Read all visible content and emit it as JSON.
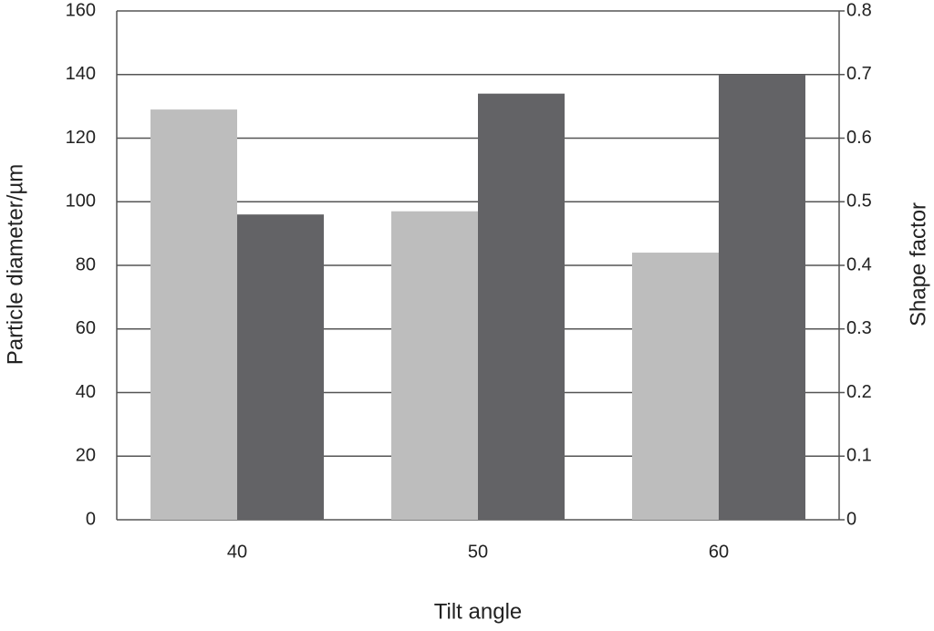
{
  "chart_data": {
    "type": "bar",
    "x_label": "Tilt angle",
    "y_label": "Particle diameter/µm",
    "y2_label": "Shape factor",
    "categories": [
      "40",
      "50",
      "60"
    ],
    "series": [
      {
        "color": "#bdbdbd",
        "values": [
          129,
          97,
          84
        ]
      },
      {
        "color": "#636366",
        "axis": "y2",
        "values": [
          0.48,
          0.67,
          0.7
        ]
      }
    ],
    "ylim": [
      0,
      160
    ],
    "yticks": [
      0,
      20,
      40,
      60,
      80,
      100,
      120,
      140,
      160
    ],
    "y2lim": [
      0,
      0.8
    ],
    "y2ticks": [
      0,
      0.1,
      0.2,
      0.3,
      0.4,
      0.5,
      0.6,
      0.7,
      0.8
    ],
    "grid": true
  }
}
